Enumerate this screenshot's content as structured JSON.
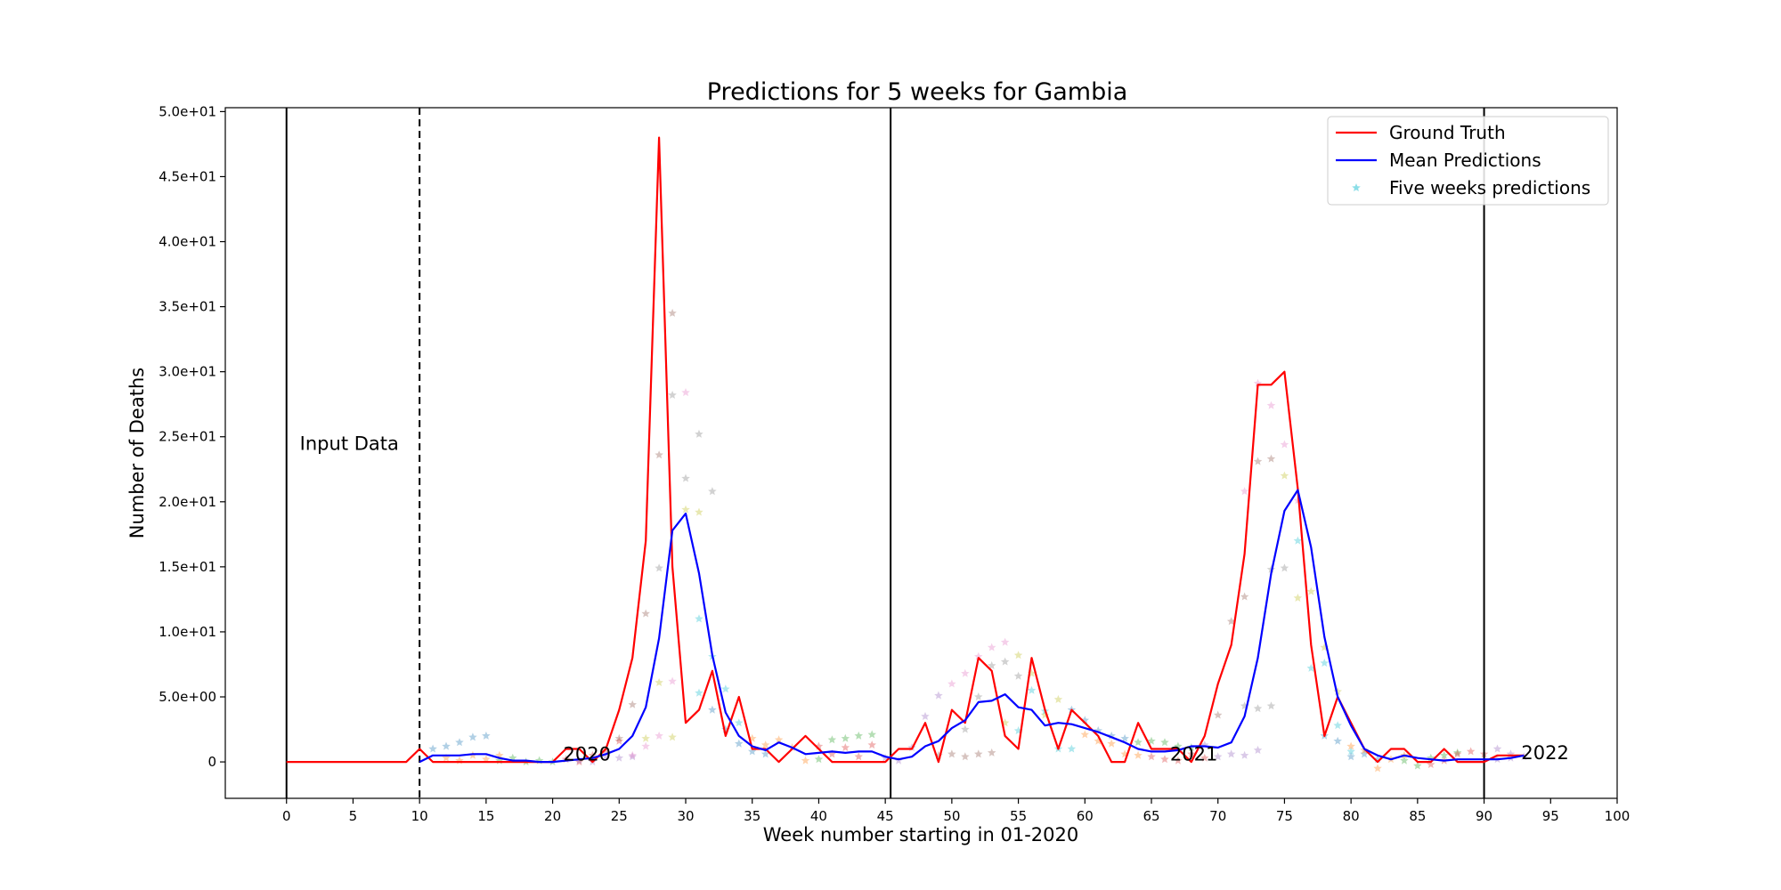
{
  "chart_data": {
    "type": "line",
    "title": "Predictions for 5 weeks for Gambia",
    "xlabel": "Week number starting in 01-2020",
    "ylabel": "Number of Deaths",
    "xlim": [
      -4.6,
      100
    ],
    "ylim": [
      -2.8,
      50.3
    ],
    "x_ticks": [
      0,
      5,
      10,
      15,
      20,
      25,
      30,
      35,
      40,
      45,
      50,
      55,
      60,
      65,
      70,
      75,
      80,
      85,
      90,
      95,
      100
    ],
    "y_ticks": [
      {
        "value": 0,
        "label": "0"
      },
      {
        "value": 5,
        "label": "5.0e+00"
      },
      {
        "value": 10,
        "label": "1.0e+01"
      },
      {
        "value": 15,
        "label": "1.5e+01"
      },
      {
        "value": 20,
        "label": "2.0e+01"
      },
      {
        "value": 25,
        "label": "2.5e+01"
      },
      {
        "value": 30,
        "label": "3.0e+01"
      },
      {
        "value": 35,
        "label": "3.5e+01"
      },
      {
        "value": 40,
        "label": "4.0e+01"
      },
      {
        "value": 45,
        "label": "4.5e+01"
      },
      {
        "value": 50,
        "label": "5.0e+01"
      }
    ],
    "grid": false,
    "legend_position": "top-right",
    "legend": [
      {
        "label": "Ground Truth",
        "kind": "line",
        "color": "#ff0000"
      },
      {
        "label": "Mean Predictions",
        "kind": "line",
        "color": "#0000ff"
      },
      {
        "label": "Five weeks predictions",
        "kind": "star",
        "color": "#17becf"
      }
    ],
    "vertical_lines": [
      {
        "x": 0,
        "style": "solid"
      },
      {
        "x": 10,
        "style": "dashed"
      },
      {
        "x": 45.4,
        "style": "solid"
      },
      {
        "x": 90,
        "style": "solid"
      }
    ],
    "annotations": [
      {
        "text": "Input Data",
        "x": 1,
        "y": 24
      },
      {
        "text": "2020",
        "x": 20.8,
        "y": 0.1
      },
      {
        "text": "2021",
        "x": 66.4,
        "y": 0.1
      },
      {
        "text": "2022",
        "x": 92.8,
        "y": 0.2
      }
    ],
    "series": [
      {
        "name": "Ground Truth",
        "color": "#ff0000",
        "x": [
          0,
          1,
          2,
          3,
          4,
          5,
          6,
          7,
          8,
          9,
          10,
          11,
          12,
          13,
          14,
          15,
          16,
          17,
          18,
          19,
          20,
          21,
          22,
          23,
          24,
          25,
          26,
          27,
          28,
          29,
          30,
          31,
          32,
          33,
          34,
          35,
          36,
          37,
          38,
          39,
          40,
          41,
          42,
          43,
          44,
          45,
          46,
          47,
          48,
          49,
          50,
          51,
          52,
          53,
          54,
          55,
          56,
          57,
          58,
          59,
          60,
          61,
          62,
          63,
          64,
          65,
          66,
          67,
          68,
          69,
          70,
          71,
          72,
          73,
          74,
          75,
          76,
          77,
          78,
          79,
          80,
          81,
          82,
          83,
          84,
          85,
          86,
          87,
          88,
          89,
          90,
          91,
          92,
          93
        ],
        "y": [
          0,
          0,
          0,
          0,
          0,
          0,
          0,
          0,
          0,
          0,
          1,
          0,
          0,
          0,
          0,
          0,
          0,
          0,
          0,
          0,
          0,
          1,
          1,
          0,
          1,
          4,
          8,
          17,
          48,
          15,
          3,
          4,
          7,
          2,
          5,
          1,
          1,
          0,
          1,
          2,
          1,
          0,
          0,
          0,
          0,
          0,
          1,
          1,
          3,
          0,
          4,
          3,
          8,
          7,
          2,
          1,
          8,
          4,
          1,
          4,
          3,
          2,
          0,
          0,
          3,
          1,
          1,
          1,
          0,
          2,
          6,
          9,
          16,
          29,
          29,
          30,
          21,
          9,
          2,
          5,
          3,
          1,
          0,
          1,
          1,
          0,
          0,
          1,
          0,
          0,
          0,
          0.5,
          0.5,
          0.5
        ]
      },
      {
        "name": "Mean Predictions",
        "color": "#0000ff",
        "x": [
          10,
          11,
          12,
          13,
          14,
          15,
          16,
          17,
          18,
          19,
          20,
          21,
          22,
          23,
          24,
          25,
          26,
          27,
          28,
          29,
          30,
          31,
          32,
          33,
          34,
          35,
          36,
          37,
          38,
          39,
          40,
          41,
          42,
          43,
          44,
          45,
          46,
          47,
          48,
          49,
          50,
          51,
          52,
          53,
          54,
          55,
          56,
          57,
          58,
          59,
          60,
          61,
          62,
          63,
          64,
          65,
          66,
          67,
          68,
          69,
          70,
          71,
          72,
          73,
          74,
          75,
          76,
          77,
          78,
          79,
          80,
          81,
          82,
          83,
          84,
          85,
          86,
          87,
          88,
          89,
          90,
          91,
          92,
          93
        ],
        "y": [
          0,
          0.5,
          0.5,
          0.5,
          0.6,
          0.6,
          0.3,
          0.1,
          0.1,
          0,
          0,
          0.1,
          0.2,
          0.3,
          0.6,
          1,
          2,
          4.2,
          9.5,
          17.8,
          19.1,
          14.5,
          8.2,
          3.8,
          2,
          1.2,
          0.9,
          1.5,
          1.1,
          0.6,
          0.7,
          0.8,
          0.7,
          0.8,
          0.8,
          0.4,
          0.2,
          0.4,
          1.2,
          1.6,
          2.6,
          3.2,
          4.6,
          4.7,
          5.2,
          4.2,
          4,
          2.8,
          3,
          2.9,
          2.6,
          2.3,
          1.9,
          1.5,
          1,
          0.8,
          0.8,
          0.9,
          1.2,
          1.2,
          1.1,
          1.5,
          3.5,
          8,
          14.5,
          19.3,
          20.9,
          16.5,
          9.6,
          5,
          2.8,
          1,
          0.5,
          0.2,
          0.5,
          0.3,
          0.2,
          0.1,
          0.2,
          0.2,
          0.2,
          0.2,
          0.3,
          0.5
        ]
      }
    ],
    "scatter": {
      "name": "Five weeks predictions",
      "marker": "star",
      "opacity": 0.35,
      "palette": [
        "#1f77b4",
        "#ff7f0e",
        "#2ca02c",
        "#d62728",
        "#9467bd",
        "#8c564b",
        "#e377c2",
        "#7f7f7f",
        "#bcbd22",
        "#17becf"
      ],
      "points": [
        {
          "x": 11,
          "y": 1.0
        },
        {
          "x": 12,
          "y": 1.2
        },
        {
          "x": 13,
          "y": 1.5
        },
        {
          "x": 14,
          "y": 1.9
        },
        {
          "x": 15,
          "y": 2.0
        },
        {
          "x": 12,
          "y": 0.3
        },
        {
          "x": 13,
          "y": 0.1
        },
        {
          "x": 14,
          "y": 0.5
        },
        {
          "x": 15,
          "y": 0.2
        },
        {
          "x": 16,
          "y": 0.5
        },
        {
          "x": 16,
          "y": 0.1
        },
        {
          "x": 17,
          "y": 0.3
        },
        {
          "x": 18,
          "y": 0
        },
        {
          "x": 19,
          "y": 0.1
        },
        {
          "x": 20,
          "y": 0
        },
        {
          "x": 21,
          "y": 0.2
        },
        {
          "x": 22,
          "y": 0
        },
        {
          "x": 23,
          "y": 0.5
        },
        {
          "x": 24,
          "y": 0.9
        },
        {
          "x": 25,
          "y": 1.6
        },
        {
          "x": 22,
          "y": 0.1
        },
        {
          "x": 23,
          "y": 0
        },
        {
          "x": 24,
          "y": 0.4
        },
        {
          "x": 25,
          "y": 0.3
        },
        {
          "x": 26,
          "y": 0.4
        },
        {
          "x": 25,
          "y": 1.8
        },
        {
          "x": 26,
          "y": 4.4
        },
        {
          "x": 27,
          "y": 11.4
        },
        {
          "x": 28,
          "y": 23.6
        },
        {
          "x": 29,
          "y": 34.5
        },
        {
          "x": 26,
          "y": 0.5
        },
        {
          "x": 27,
          "y": 1.2
        },
        {
          "x": 28,
          "y": 2.0
        },
        {
          "x": 29,
          "y": 6.2
        },
        {
          "x": 30,
          "y": 28.4
        },
        {
          "x": 28,
          "y": 14.9
        },
        {
          "x": 29,
          "y": 28.2
        },
        {
          "x": 30,
          "y": 21.8
        },
        {
          "x": 31,
          "y": 25.2
        },
        {
          "x": 32,
          "y": 20.8
        },
        {
          "x": 27,
          "y": 1.8
        },
        {
          "x": 28,
          "y": 6.1
        },
        {
          "x": 29,
          "y": 1.9
        },
        {
          "x": 30,
          "y": 19.4
        },
        {
          "x": 31,
          "y": 19.2
        },
        {
          "x": 31,
          "y": 11.0
        },
        {
          "x": 32,
          "y": 8.1
        },
        {
          "x": 33,
          "y": 5.6
        },
        {
          "x": 34,
          "y": 3.0
        },
        {
          "x": 31,
          "y": 5.3
        },
        {
          "x": 32,
          "y": 4.0
        },
        {
          "x": 33,
          "y": 2.5
        },
        {
          "x": 34,
          "y": 1.4
        },
        {
          "x": 35,
          "y": 0.8
        },
        {
          "x": 36,
          "y": 0.6
        },
        {
          "x": 35,
          "y": 1.8
        },
        {
          "x": 36,
          "y": 1.3
        },
        {
          "x": 37,
          "y": 1.7
        },
        {
          "x": 38,
          "y": 1.1
        },
        {
          "x": 39,
          "y": 0.1
        },
        {
          "x": 40,
          "y": 0.2
        },
        {
          "x": 41,
          "y": 1.7
        },
        {
          "x": 42,
          "y": 1.8
        },
        {
          "x": 43,
          "y": 2.0
        },
        {
          "x": 44,
          "y": 2.1
        },
        {
          "x": 40,
          "y": 1.2
        },
        {
          "x": 41,
          "y": 0.6
        },
        {
          "x": 42,
          "y": 1.1
        },
        {
          "x": 43,
          "y": 0.4
        },
        {
          "x": 44,
          "y": 1.3
        },
        {
          "x": 45,
          "y": 0.3
        },
        {
          "x": 46,
          "y": 0.1
        },
        {
          "x": 47,
          "y": 1.1
        },
        {
          "x": 48,
          "y": 3.5
        },
        {
          "x": 49,
          "y": 5.1
        },
        {
          "x": 49,
          "y": 0.5
        },
        {
          "x": 50,
          "y": 0.6
        },
        {
          "x": 51,
          "y": 0.4
        },
        {
          "x": 52,
          "y": 0.6
        },
        {
          "x": 53,
          "y": 0.7
        },
        {
          "x": 50,
          "y": 6.0
        },
        {
          "x": 51,
          "y": 6.8
        },
        {
          "x": 52,
          "y": 8.1
        },
        {
          "x": 53,
          "y": 8.8
        },
        {
          "x": 54,
          "y": 9.2
        },
        {
          "x": 51,
          "y": 2.5
        },
        {
          "x": 52,
          "y": 5.0
        },
        {
          "x": 53,
          "y": 7.4
        },
        {
          "x": 54,
          "y": 7.7
        },
        {
          "x": 55,
          "y": 6.6
        },
        {
          "x": 54,
          "y": 3.0
        },
        {
          "x": 55,
          "y": 8.2
        },
        {
          "x": 56,
          "y": 6.8
        },
        {
          "x": 57,
          "y": 3.6
        },
        {
          "x": 58,
          "y": 4.8
        },
        {
          "x": 55,
          "y": 2.4
        },
        {
          "x": 56,
          "y": 5.5
        },
        {
          "x": 57,
          "y": 3.9
        },
        {
          "x": 58,
          "y": 1.0
        },
        {
          "x": 59,
          "y": 1.0
        },
        {
          "x": 59,
          "y": 4.0
        },
        {
          "x": 60,
          "y": 3.2
        },
        {
          "x": 61,
          "y": 2.4
        },
        {
          "x": 62,
          "y": 2.0
        },
        {
          "x": 63,
          "y": 1.8
        },
        {
          "x": 60,
          "y": 2.1
        },
        {
          "x": 61,
          "y": 1.6
        },
        {
          "x": 62,
          "y": 1.4
        },
        {
          "x": 63,
          "y": 0.6
        },
        {
          "x": 64,
          "y": 0.5
        },
        {
          "x": 64,
          "y": 1.5
        },
        {
          "x": 65,
          "y": 1.6
        },
        {
          "x": 66,
          "y": 1.5
        },
        {
          "x": 67,
          "y": 1.2
        },
        {
          "x": 68,
          "y": 1.1
        },
        {
          "x": 65,
          "y": 0.4
        },
        {
          "x": 66,
          "y": 0.2
        },
        {
          "x": 67,
          "y": 0.1
        },
        {
          "x": 68,
          "y": 0.6
        },
        {
          "x": 69,
          "y": 0.3
        },
        {
          "x": 70,
          "y": 0.4
        },
        {
          "x": 71,
          "y": 0.6
        },
        {
          "x": 72,
          "y": 0.5
        },
        {
          "x": 73,
          "y": 0.9
        },
        {
          "x": 69,
          "y": 1.3
        },
        {
          "x": 70,
          "y": 3.6
        },
        {
          "x": 71,
          "y": 10.8
        },
        {
          "x": 72,
          "y": 12.7
        },
        {
          "x": 73,
          "y": 23.1
        },
        {
          "x": 74,
          "y": 23.3
        },
        {
          "x": 72,
          "y": 20.8
        },
        {
          "x": 73,
          "y": 29.1
        },
        {
          "x": 74,
          "y": 27.4
        },
        {
          "x": 75,
          "y": 24.4
        },
        {
          "x": 76,
          "y": 20.1
        },
        {
          "x": 72,
          "y": 4.3
        },
        {
          "x": 73,
          "y": 4.1
        },
        {
          "x": 74,
          "y": 4.3
        },
        {
          "x": 74,
          "y": 14.8
        },
        {
          "x": 75,
          "y": 14.9
        },
        {
          "x": 75,
          "y": 22.0
        },
        {
          "x": 76,
          "y": 12.6
        },
        {
          "x": 77,
          "y": 13.1
        },
        {
          "x": 78,
          "y": 8.8
        },
        {
          "x": 79,
          "y": 5.4
        },
        {
          "x": 76,
          "y": 17.0
        },
        {
          "x": 77,
          "y": 7.2
        },
        {
          "x": 78,
          "y": 7.6
        },
        {
          "x": 79,
          "y": 2.8
        },
        {
          "x": 80,
          "y": 0.8
        },
        {
          "x": 78,
          "y": 2.0
        },
        {
          "x": 79,
          "y": 1.6
        },
        {
          "x": 80,
          "y": 0.4
        },
        {
          "x": 81,
          "y": 0.6
        },
        {
          "x": 82,
          "y": 0.2
        },
        {
          "x": 80,
          "y": 1.2
        },
        {
          "x": 81,
          "y": 0.9
        },
        {
          "x": 82,
          "y": -0.5
        },
        {
          "x": 83,
          "y": 0.2
        },
        {
          "x": 84,
          "y": 0.5
        },
        {
          "x": 84,
          "y": 0.1
        },
        {
          "x": 85,
          "y": -0.3
        },
        {
          "x": 86,
          "y": 0.3
        },
        {
          "x": 87,
          "y": 0.5
        },
        {
          "x": 88,
          "y": 0.7
        },
        {
          "x": 86,
          "y": -0.2
        },
        {
          "x": 87,
          "y": 0.1
        },
        {
          "x": 88,
          "y": 0.6
        },
        {
          "x": 89,
          "y": 0.8
        },
        {
          "x": 90,
          "y": 0.6
        },
        {
          "x": 91,
          "y": 1.0
        },
        {
          "x": 92,
          "y": 0.6
        },
        {
          "x": 93,
          "y": 0.4
        },
        {
          "x": 91,
          "y": 0.2
        },
        {
          "x": 92,
          "y": 0.3
        }
      ]
    }
  }
}
